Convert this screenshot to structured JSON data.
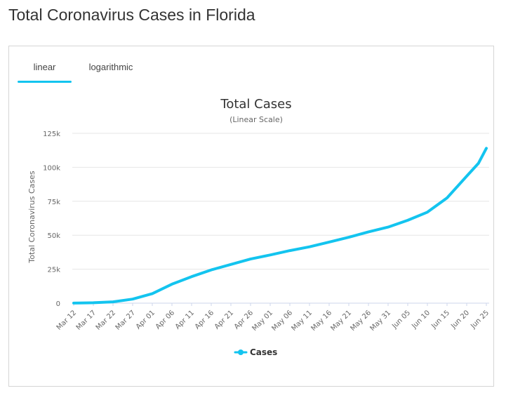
{
  "page": {
    "title": "Total Coronavirus Cases in Florida"
  },
  "tabs": [
    {
      "label": "linear",
      "active": true
    },
    {
      "label": "logarithmic",
      "active": false
    }
  ],
  "colors": {
    "series": "#13c4ef",
    "grid": "#e6e6e6",
    "axis": "#ccd6eb"
  },
  "chart_data": {
    "type": "line",
    "title": "Total Cases",
    "subtitle": "(Linear Scale)",
    "ylabel": "Total Coronavirus Cases",
    "xlabel": "",
    "ylim": [
      0,
      125000
    ],
    "yticks": [
      0,
      25000,
      50000,
      75000,
      100000,
      125000
    ],
    "ytick_labels": [
      "0",
      "25k",
      "50k",
      "75k",
      "100k",
      "125k"
    ],
    "xtick_labels": [
      "Mar 12",
      "Mar 17",
      "Mar 22",
      "Mar 27",
      "Apr 01",
      "Apr 06",
      "Apr 11",
      "Apr 16",
      "Apr 21",
      "Apr 26",
      "May 01",
      "May 06",
      "May 11",
      "May 16",
      "May 21",
      "May 26",
      "May 31",
      "Jun 05",
      "Jun 10",
      "Jun 15",
      "Jun 20",
      "Jun 25"
    ],
    "grid": true,
    "legend": "bottom-center",
    "series": [
      {
        "name": "Cases",
        "x": [
          "Mar 12",
          "Mar 17",
          "Mar 22",
          "Mar 27",
          "Apr 01",
          "Apr 06",
          "Apr 11",
          "Apr 16",
          "Apr 21",
          "Apr 26",
          "May 01",
          "May 06",
          "May 11",
          "May 16",
          "May 21",
          "May 26",
          "May 31",
          "Jun 05",
          "Jun 10",
          "Jun 15",
          "Jun 20",
          "Jun 23",
          "Jun 25"
        ],
        "values": [
          30,
          300,
          1000,
          3000,
          7000,
          14000,
          19500,
          24500,
          28500,
          32500,
          35500,
          38700,
          41500,
          45000,
          48500,
          52500,
          56000,
          61000,
          67000,
          77500,
          93500,
          103000,
          114000
        ]
      }
    ]
  }
}
